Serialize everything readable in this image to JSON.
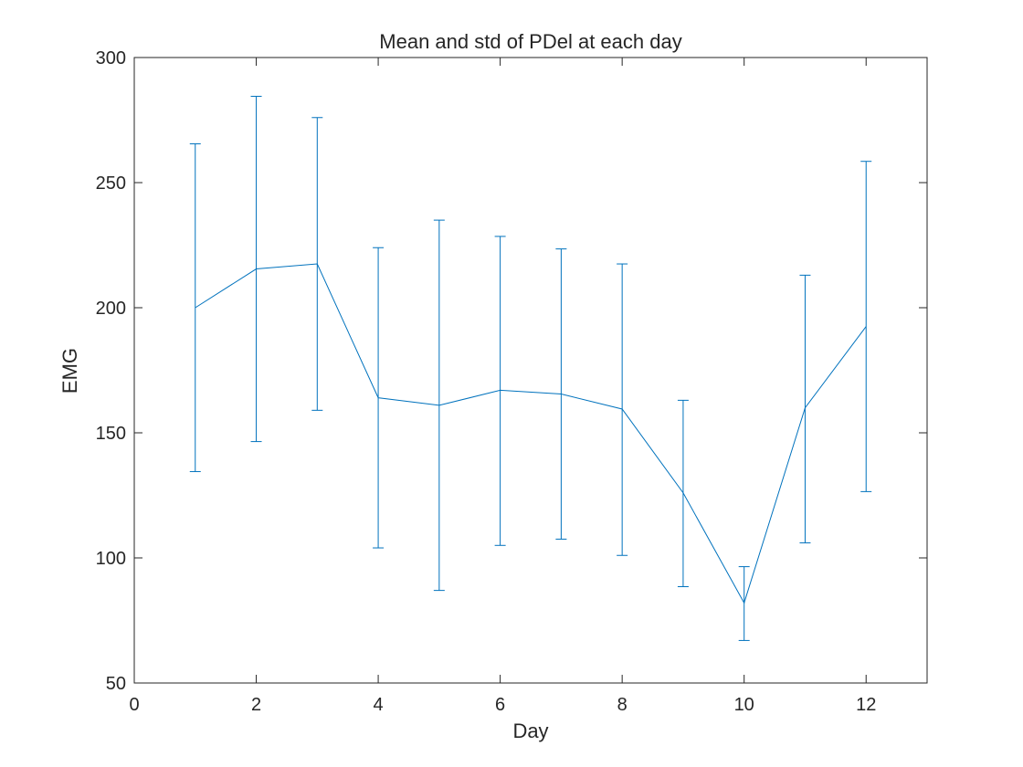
{
  "chart_data": {
    "type": "line",
    "title": "Mean and std of PDel at each day",
    "xlabel": "Day",
    "ylabel": "EMG",
    "xlim": [
      0,
      13
    ],
    "ylim": [
      50,
      300
    ],
    "xticks": [
      0,
      2,
      4,
      6,
      8,
      10,
      12
    ],
    "yticks": [
      50,
      100,
      150,
      200,
      250,
      300
    ],
    "grid": false,
    "legend": "none",
    "series": [
      {
        "color": "#0072BD",
        "x": [
          1,
          2,
          3,
          4,
          5,
          6,
          7,
          8,
          9,
          10,
          11,
          12
        ],
        "mean": [
          200,
          215.5,
          217.5,
          164,
          161,
          167,
          165.5,
          159.5,
          126,
          82,
          160,
          192.5
        ],
        "lower": [
          134.5,
          146.5,
          159,
          104,
          87,
          105,
          107.5,
          101,
          88.5,
          67,
          106,
          126.5
        ],
        "upper": [
          265.5,
          284.5,
          276,
          224,
          235,
          228.5,
          223.5,
          217.5,
          163,
          96.5,
          213,
          258.5
        ]
      }
    ]
  }
}
